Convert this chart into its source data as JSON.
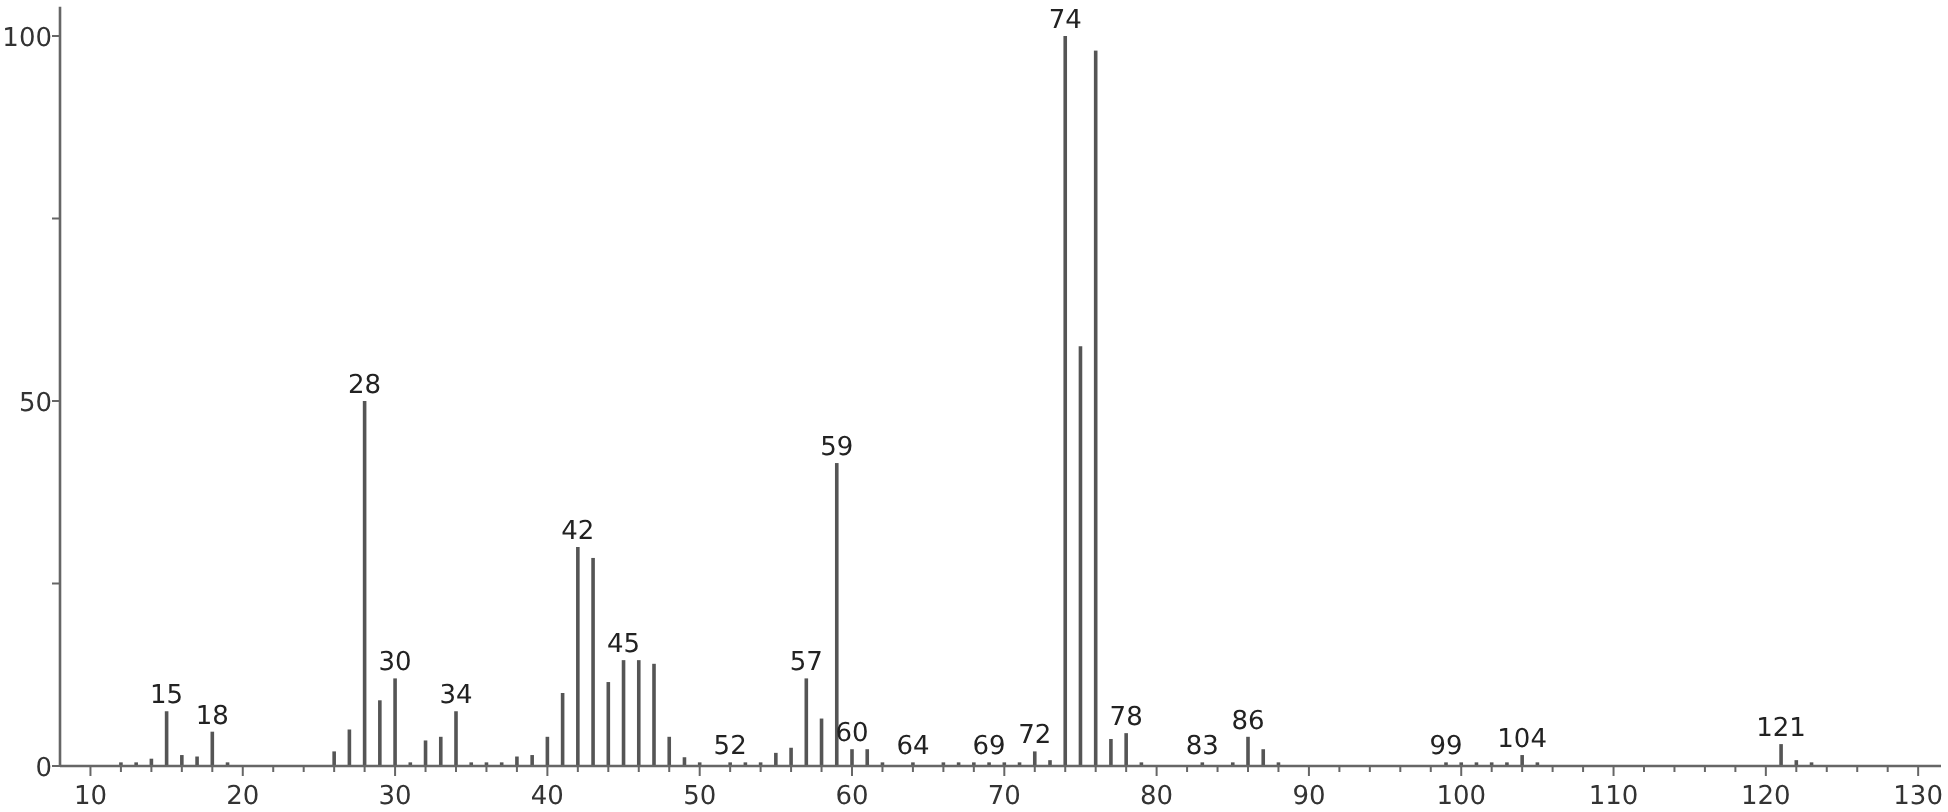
{
  "chart_data": {
    "type": "bar",
    "color": "#555555",
    "x": [
      12,
      13,
      14,
      15,
      16,
      17,
      18,
      19,
      26,
      27,
      28,
      29,
      30,
      31,
      32,
      33,
      34,
      35,
      36,
      37,
      38,
      39,
      40,
      41,
      42,
      43,
      44,
      45,
      46,
      47,
      48,
      49,
      50,
      52,
      53,
      54,
      55,
      56,
      57,
      58,
      59,
      60,
      61,
      62,
      64,
      66,
      67,
      68,
      69,
      70,
      71,
      72,
      73,
      74,
      75,
      76,
      77,
      78,
      79,
      83,
      85,
      86,
      87,
      88,
      99,
      100,
      101,
      102,
      103,
      104,
      105,
      121,
      122,
      123
    ],
    "values": [
      0.5,
      0.5,
      1,
      7.5,
      1.5,
      1.3,
      4.7,
      0.5,
      2,
      5,
      50,
      9,
      12,
      0.5,
      3.5,
      4,
      7.5,
      0.5,
      0.5,
      0.5,
      1.3,
      1.5,
      4,
      10,
      30,
      28.5,
      11.5,
      14.5,
      14.5,
      14,
      4,
      1.2,
      0.5,
      0.5,
      0.5,
      0.5,
      1.8,
      2.5,
      12,
      6.5,
      41.5,
      2.3,
      2.3,
      0.5,
      0.5,
      0.5,
      0.5,
      0.5,
      0.5,
      0.5,
      0.5,
      2,
      0.8,
      100,
      57.5,
      98,
      3.7,
      4.5,
      0.5,
      0.5,
      0.5,
      4,
      2.3,
      0.5,
      0.5,
      0.5,
      0.5,
      0.5,
      0.5,
      1.5,
      0.5,
      3,
      0.8,
      0.5
    ],
    "xlim": [
      8,
      131.5
    ],
    "ylim": [
      0,
      104
    ],
    "xticks": [
      10,
      {
        "value": 12,
        "label": null
      },
      {
        "value": 14,
        "label": null
      },
      {
        "value": 16,
        "label": null
      },
      {
        "value": 18,
        "label": null
      },
      20,
      {
        "value": 22,
        "label": null
      },
      {
        "value": 24,
        "label": null
      },
      {
        "value": 26,
        "label": null
      },
      {
        "value": 28,
        "label": null
      },
      30,
      {
        "value": 32,
        "label": null
      },
      {
        "value": 34,
        "label": null
      },
      {
        "value": 36,
        "label": null
      },
      {
        "value": 38,
        "label": null
      },
      40,
      {
        "value": 42,
        "label": null
      },
      {
        "value": 44,
        "label": null
      },
      {
        "value": 46,
        "label": null
      },
      {
        "value": 48,
        "label": null
      },
      50,
      {
        "value": 52,
        "label": null
      },
      {
        "value": 54,
        "label": null
      },
      {
        "value": 56,
        "label": null
      },
      {
        "value": 58,
        "label": null
      },
      60,
      {
        "value": 62,
        "label": null
      },
      {
        "value": 64,
        "label": null
      },
      {
        "value": 66,
        "label": null
      },
      {
        "value": 68,
        "label": null
      },
      70,
      {
        "value": 72,
        "label": null
      },
      {
        "value": 74,
        "label": null
      },
      {
        "value": 76,
        "label": null
      },
      {
        "value": 78,
        "label": null
      },
      80,
      {
        "value": 82,
        "label": null
      },
      {
        "value": 84,
        "label": null
      },
      {
        "value": 86,
        "label": null
      },
      {
        "value": 88,
        "label": null
      },
      90,
      {
        "value": 92,
        "label": null
      },
      {
        "value": 94,
        "label": null
      },
      {
        "value": 96,
        "label": null
      },
      {
        "value": 98,
        "label": null
      },
      100,
      {
        "value": 102,
        "label": null
      },
      {
        "value": 104,
        "label": null
      },
      {
        "value": 106,
        "label": null
      },
      {
        "value": 108,
        "label": null
      },
      110,
      {
        "value": 112,
        "label": null
      },
      {
        "value": 114,
        "label": null
      },
      {
        "value": 116,
        "label": null
      },
      {
        "value": 118,
        "label": null
      },
      120,
      {
        "value": 122,
        "label": null
      },
      {
        "value": 124,
        "label": null
      },
      {
        "value": 126,
        "label": null
      },
      {
        "value": 128,
        "label": null
      },
      130
    ],
    "yticks": [
      0,
      {
        "value": 25,
        "label": null
      },
      50,
      {
        "value": 75,
        "label": null
      },
      100
    ],
    "annotations": [
      {
        "text": "15",
        "x": 15,
        "y": 7.5
      },
      {
        "text": "18",
        "x": 18,
        "y": 4.7
      },
      {
        "text": "28",
        "x": 28,
        "y": 50
      },
      {
        "text": "30",
        "x": 30,
        "y": 12
      },
      {
        "text": "34",
        "x": 34,
        "y": 7.5
      },
      {
        "text": "42",
        "x": 42,
        "y": 30
      },
      {
        "text": "45",
        "x": 45,
        "y": 14.5
      },
      {
        "text": "52",
        "x": 52,
        "y": 0.5
      },
      {
        "text": "57",
        "x": 57,
        "y": 12
      },
      {
        "text": "59",
        "x": 59,
        "y": 41.5
      },
      {
        "text": "60",
        "x": 60,
        "y": 2.3
      },
      {
        "text": "64",
        "x": 64,
        "y": 0.5
      },
      {
        "text": "69",
        "x": 69,
        "y": 0.5
      },
      {
        "text": "72",
        "x": 72,
        "y": 2
      },
      {
        "text": "74",
        "x": 74,
        "y": 100
      },
      {
        "text": "78",
        "x": 78,
        "y": 4.5
      },
      {
        "text": "83",
        "x": 83,
        "y": 0.5
      },
      {
        "text": "86",
        "x": 86,
        "y": 4
      },
      {
        "text": "99",
        "x": 99,
        "y": 0.5
      },
      {
        "text": "104",
        "x": 104,
        "y": 1.5
      },
      {
        "text": "121",
        "x": 121,
        "y": 3
      }
    ]
  }
}
